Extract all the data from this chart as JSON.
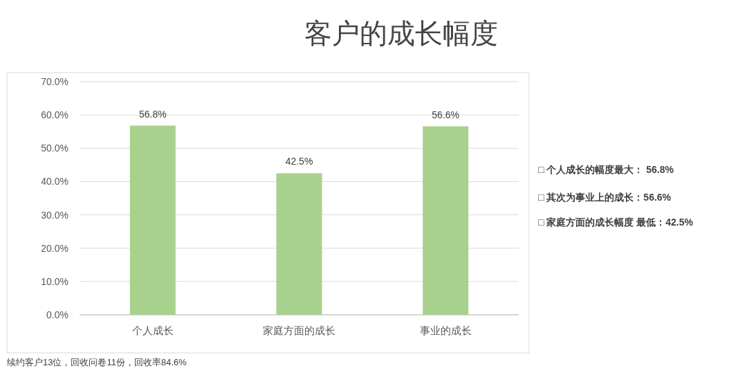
{
  "chart_data": {
    "type": "bar",
    "title": "客户的成长幅度",
    "categories": [
      "个人成长",
      "家庭方面的成长",
      "事业的成长"
    ],
    "values": [
      56.8,
      42.5,
      56.6
    ],
    "value_labels": [
      "56.8%",
      "42.5%",
      "56.6%"
    ],
    "color": "#a9d18e",
    "ylim": [
      0,
      70
    ],
    "yticks": [
      {
        "value": 0,
        "label": "0.0%"
      },
      {
        "value": 10,
        "label": "10.0%"
      },
      {
        "value": 20,
        "label": "20.0%"
      },
      {
        "value": 30,
        "label": "30.0%"
      },
      {
        "value": 40,
        "label": "40.0%"
      },
      {
        "value": 50,
        "label": "50.0%"
      },
      {
        "value": 60,
        "label": "60.0%"
      },
      {
        "value": 70,
        "label": "70.0%"
      }
    ],
    "grid": "y",
    "annotations": [
      "□ 个人成长的幅度最大：  56.8%",
      "□ 其次为事业上的成长：56.6%",
      "□ 家庭方面的成长幅度 最低：42.5%",
      "续约客户13位，回收问卷11份，回收率84.6%"
    ]
  }
}
